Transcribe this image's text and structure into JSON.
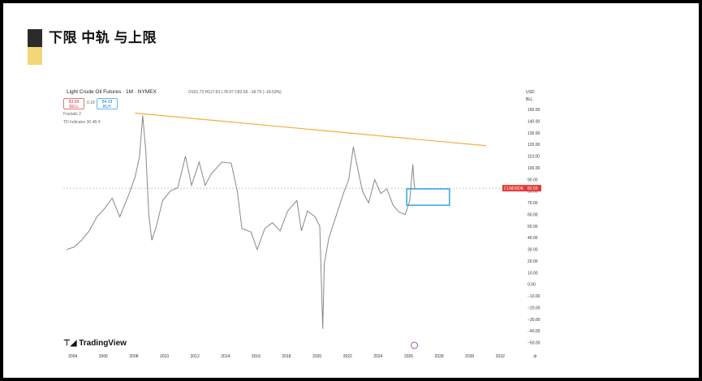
{
  "slide": {
    "title": "下限 中轨 与上限"
  },
  "chart_header": {
    "instrument": "Light Crude Oil Futures · 1M · NYMEX",
    "ohlc": "O101.72 H117.63 L78.97 C82.59 −18.79 (−18.53%)",
    "sell_price": "83.99",
    "sell_label": "SELL",
    "spread": "0.18",
    "buy_price": "84.18",
    "buy_label": "BUY",
    "indicator_1": "Fractals 2",
    "indicator_2": "TD Indicator 30 48 4",
    "currency": "USD",
    "unit": "BLL",
    "price_tag_left": "CLNDDDK",
    "price_tag_value": "82.59",
    "watermark": "TradingView"
  },
  "chart_data": {
    "type": "line",
    "title": "Light Crude Oil Futures · 1M · NYMEX",
    "x_ticks": [
      "2004",
      "2006",
      "2008",
      "2010",
      "2012",
      "2014",
      "2016",
      "2018",
      "2020",
      "2022",
      "2024",
      "2026",
      "2028",
      "2030",
      "2032"
    ],
    "y_ticks": [
      "150.00",
      "140.00",
      "130.00",
      "120.00",
      "110.00",
      "100.00",
      "90.00",
      "80.00",
      "70.00",
      "60.00",
      "50.00",
      "40.00",
      "30.00",
      "20.00",
      "10.00",
      "0.00",
      "−10.00",
      "−20.00",
      "−30.00",
      "−40.00",
      "−50.00"
    ],
    "ylim": [
      -55,
      155
    ],
    "xlim": [
      2003.3,
      2033.5
    ],
    "series": [
      {
        "values": [
          [
            2003.5,
            30
          ],
          [
            2004.0,
            32
          ],
          [
            2004.5,
            38
          ],
          [
            2005.0,
            46
          ],
          [
            2005.5,
            58
          ],
          [
            2006.0,
            65
          ],
          [
            2006.5,
            74
          ],
          [
            2007.0,
            58
          ],
          [
            2007.5,
            74
          ],
          [
            2008.0,
            92
          ],
          [
            2008.3,
            110
          ],
          [
            2008.5,
            145
          ],
          [
            2008.7,
            115
          ],
          [
            2008.9,
            60
          ],
          [
            2009.1,
            38
          ],
          [
            2009.4,
            50
          ],
          [
            2009.8,
            72
          ],
          [
            2010.3,
            80
          ],
          [
            2010.8,
            83
          ],
          [
            2011.3,
            110
          ],
          [
            2011.7,
            85
          ],
          [
            2012.2,
            105
          ],
          [
            2012.6,
            85
          ],
          [
            2013.0,
            95
          ],
          [
            2013.7,
            105
          ],
          [
            2014.3,
            104
          ],
          [
            2014.7,
            80
          ],
          [
            2015.0,
            48
          ],
          [
            2015.6,
            45
          ],
          [
            2016.0,
            30
          ],
          [
            2016.5,
            48
          ],
          [
            2017.0,
            53
          ],
          [
            2017.5,
            46
          ],
          [
            2018.0,
            63
          ],
          [
            2018.6,
            72
          ],
          [
            2018.9,
            46
          ],
          [
            2019.3,
            63
          ],
          [
            2019.8,
            58
          ],
          [
            2020.1,
            50
          ],
          [
            2020.3,
            -38
          ],
          [
            2020.4,
            18
          ],
          [
            2020.7,
            40
          ],
          [
            2021.2,
            60
          ],
          [
            2021.7,
            80
          ],
          [
            2022.0,
            90
          ],
          [
            2022.3,
            118
          ],
          [
            2022.5,
            105
          ],
          [
            2022.9,
            80
          ],
          [
            2023.3,
            70
          ],
          [
            2023.7,
            90
          ],
          [
            2024.1,
            78
          ],
          [
            2024.5,
            82
          ],
          [
            2024.9,
            68
          ],
          [
            2025.3,
            62
          ],
          [
            2025.7,
            60
          ],
          [
            2026.0,
            72
          ],
          [
            2026.2,
            103
          ],
          [
            2026.3,
            84
          ],
          [
            2026.35,
            82.59
          ]
        ]
      }
    ],
    "trendline": [
      [
        2008.0,
        147
      ],
      [
        2031.0,
        119
      ]
    ],
    "highlight_box": {
      "x": [
        2025.8,
        2028.6
      ],
      "y": [
        68,
        82
      ]
    },
    "last_price": 82.59,
    "grid": false
  }
}
